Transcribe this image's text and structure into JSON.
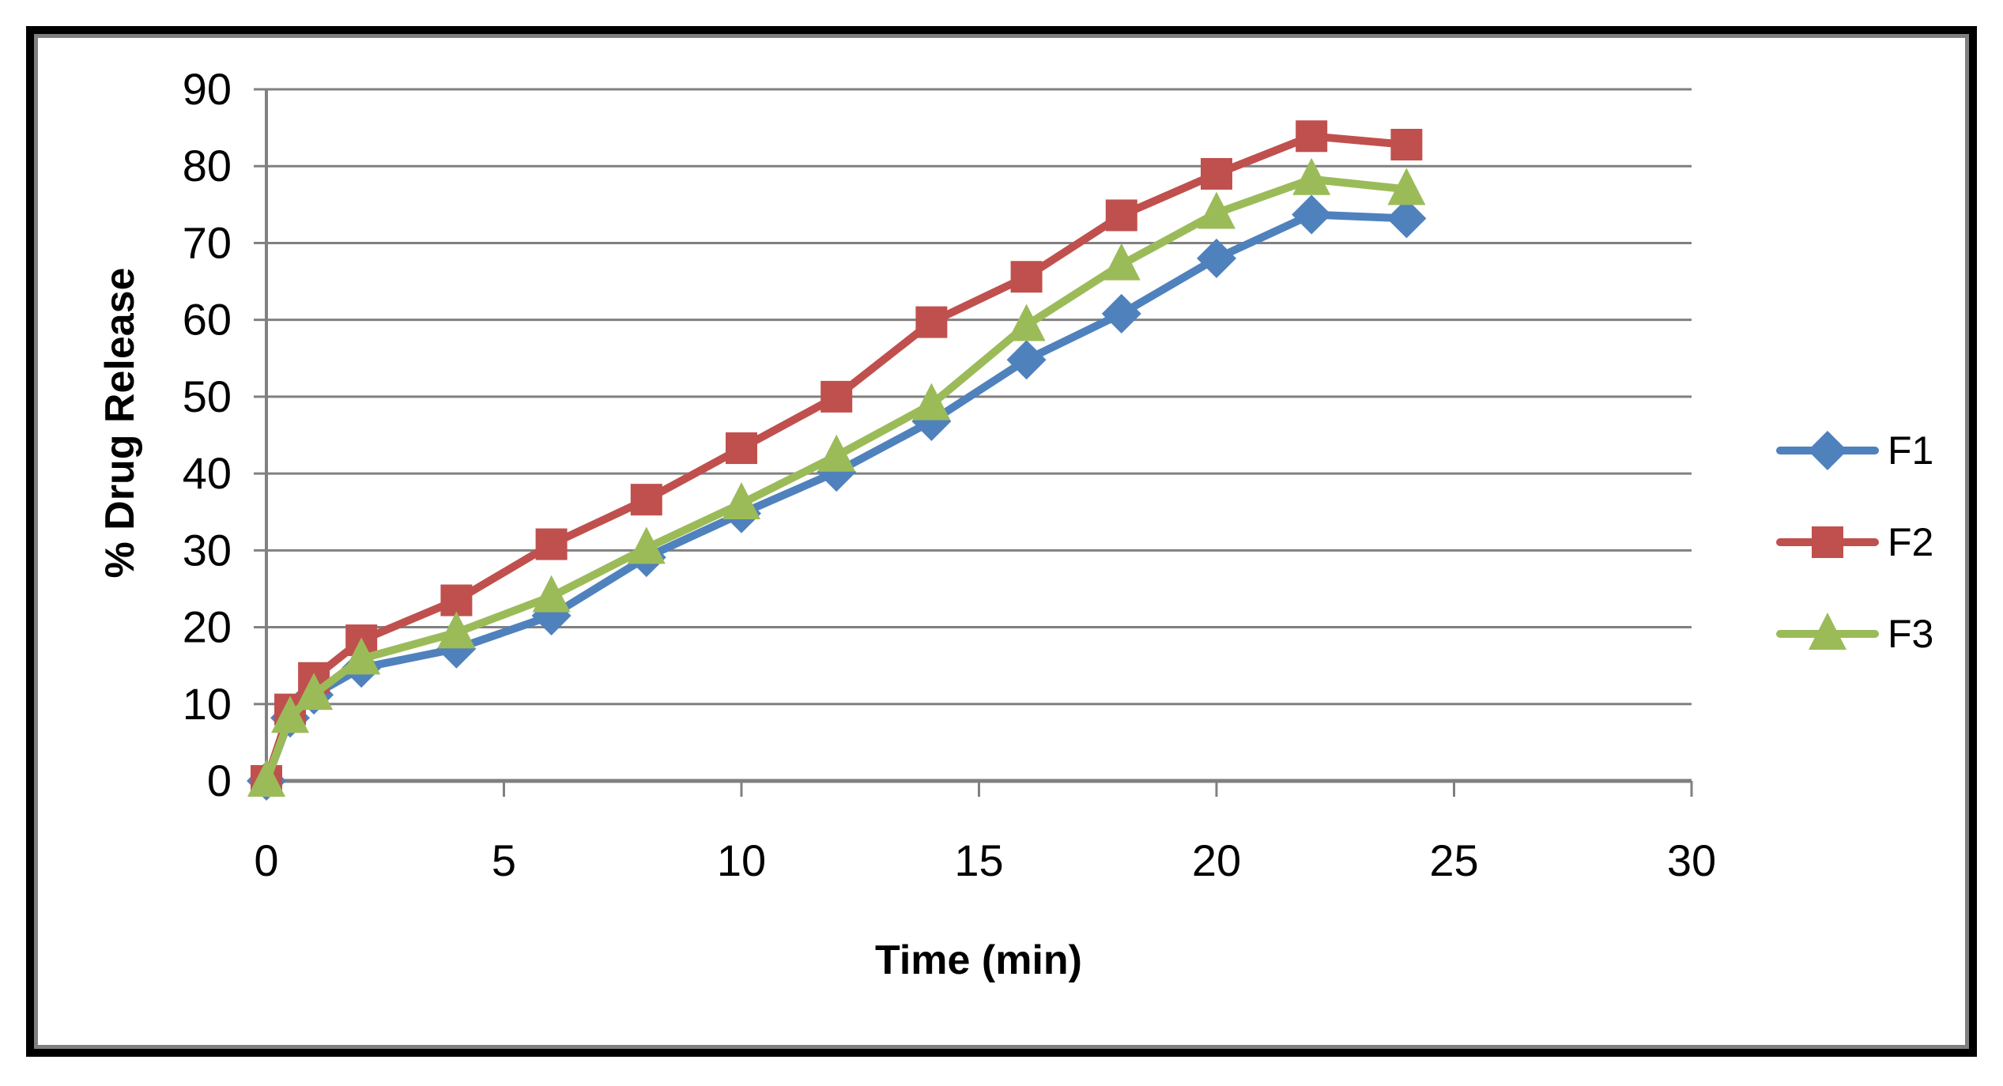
{
  "figure": {
    "background": "#ffffff",
    "outer_border_color": "#000000",
    "inner_border_color": "#808080"
  },
  "chart_data": {
    "type": "line",
    "title": "",
    "xlabel": "Time (min)",
    "ylabel": "% Drug Release",
    "xlim": [
      0,
      30
    ],
    "ylim": [
      0,
      90
    ],
    "x_ticks": [
      0,
      5,
      10,
      15,
      20,
      25,
      30
    ],
    "y_ticks": [
      0,
      10,
      20,
      30,
      40,
      50,
      60,
      70,
      80,
      90
    ],
    "grid": "horizontal",
    "gridline_color": "#808080",
    "axis_color": "#808080",
    "legend_position": "right",
    "x": [
      0,
      0.5,
      1,
      2,
      4,
      6,
      8,
      10,
      12,
      14,
      16,
      18,
      20,
      22,
      24
    ],
    "series": [
      {
        "name": "F1",
        "color": "#4F81BD",
        "marker": "diamond",
        "values": [
          0,
          8.2,
          11.2,
          14.7,
          17.2,
          21.5,
          29.1,
          34.8,
          40.2,
          46.8,
          54.8,
          60.8,
          68.0,
          73.7,
          73.2
        ]
      },
      {
        "name": "F2",
        "color": "#C0504D",
        "marker": "square",
        "values": [
          0,
          9.3,
          13.4,
          18.3,
          23.5,
          30.8,
          36.6,
          43.3,
          50.0,
          59.7,
          65.6,
          73.6,
          79.0,
          83.9,
          82.8
        ]
      },
      {
        "name": "F3",
        "color": "#9BBB59",
        "marker": "triangle",
        "values": [
          0,
          8.3,
          11.3,
          15.9,
          19.3,
          24.0,
          30.3,
          36.1,
          42.3,
          49.0,
          59.3,
          67.2,
          73.9,
          78.3,
          77.0
        ]
      }
    ]
  }
}
